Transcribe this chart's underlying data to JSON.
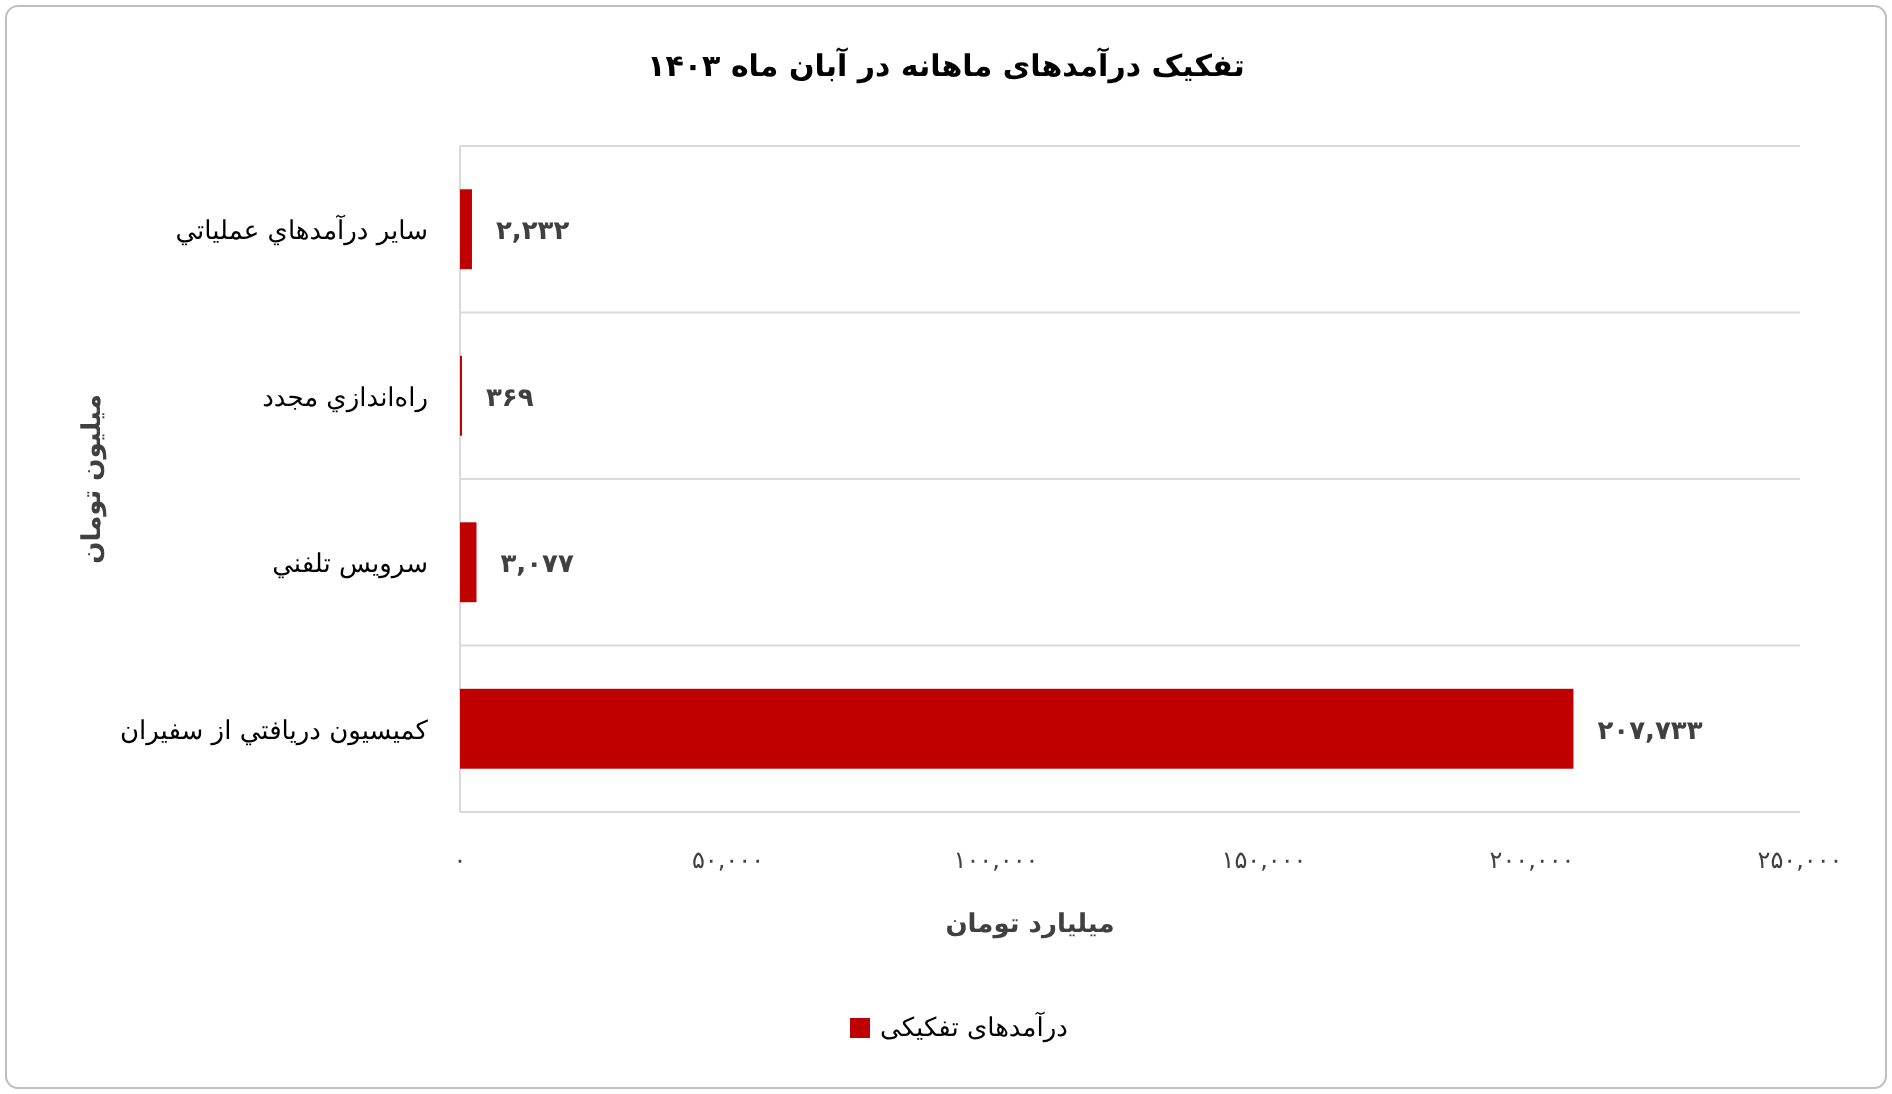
{
  "chart_data": {
    "type": "bar",
    "orientation": "horizontal",
    "title": "تفکیک درآمدهای ماهانه در آبان ماه ۱۴۰۳",
    "xlabel": "میلیارد تومان",
    "ylabel": "میلیون تومان",
    "categories": [
      "ساير درآمدهاي عملياتي",
      "راه‌اندازي مجدد",
      "سرويس تلفني",
      "كميسيون دريافتي از سفيران"
    ],
    "series": [
      {
        "name": "درآمدهای تفکیکی",
        "color": "#c00000",
        "values": [
          2232,
          369,
          3077,
          207733
        ],
        "value_labels": [
          "۲,۲۳۲",
          "۳۶۹",
          "۳,۰۷۷",
          "۲۰۷,۷۳۳"
        ]
      }
    ],
    "xlim": [
      0,
      250000
    ],
    "xticks": [
      {
        "value": 0,
        "label": "۰"
      },
      {
        "value": 50000,
        "label": "۵۰,۰۰۰"
      },
      {
        "value": 100000,
        "label": "۱۰۰,۰۰۰"
      },
      {
        "value": 150000,
        "label": "۱۵۰,۰۰۰"
      },
      {
        "value": 200000,
        "label": "۲۰۰,۰۰۰"
      },
      {
        "value": 250000,
        "label": "۲۵۰,۰۰۰"
      }
    ],
    "grid": "y",
    "legend": "bottom"
  }
}
